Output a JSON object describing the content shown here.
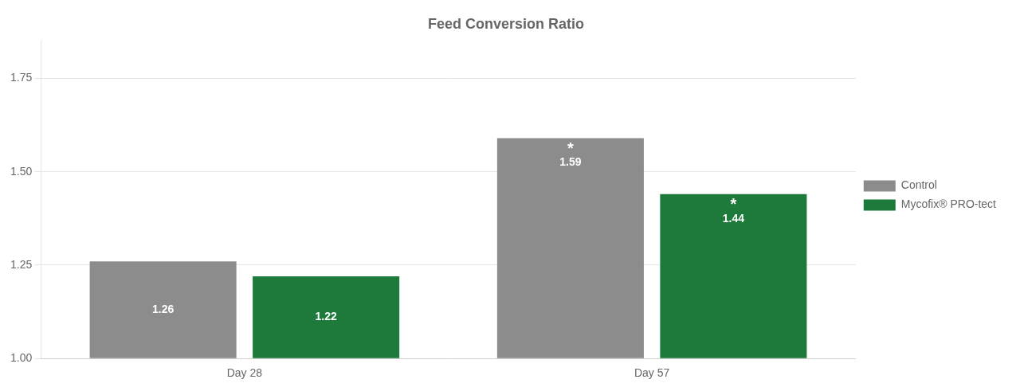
{
  "chart_data": {
    "type": "bar",
    "title": "Feed Conversion Ratio",
    "categories": [
      "Day 28",
      "Day 57"
    ],
    "series": [
      {
        "name": "Control",
        "color": "#8c8c8c",
        "values": [
          1.26,
          1.59
        ]
      },
      {
        "name": "Mycofix® PRO-tect",
        "color": "#1d7a3a",
        "values": [
          1.22,
          1.44
        ]
      }
    ],
    "ylim": [
      1.0,
      1.85
    ],
    "yticks": [
      {
        "value": 1.0,
        "label": "1.00"
      },
      {
        "value": 1.25,
        "label": "1.25"
      },
      {
        "value": 1.5,
        "label": "1.50"
      },
      {
        "value": 1.75,
        "label": "1.75"
      }
    ],
    "grid": true,
    "legend": "right",
    "data_labels": true,
    "annotations": [
      {
        "text": "*",
        "category": "Day 57",
        "series": "Control"
      },
      {
        "text": "*",
        "category": "Day 57",
        "series": "Mycofix® PRO-tect"
      }
    ]
  }
}
